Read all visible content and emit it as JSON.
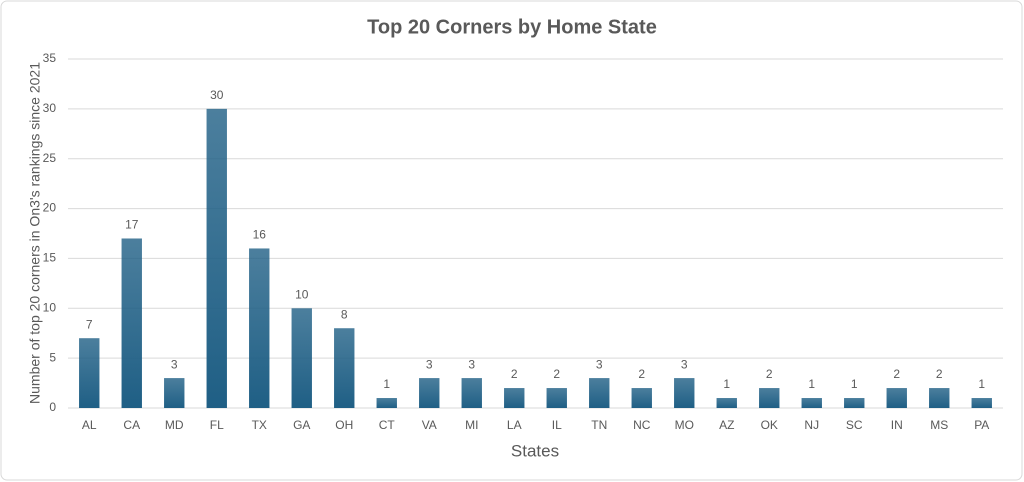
{
  "chart_data": {
    "type": "bar",
    "title": "Top 20 Corners by Home State",
    "x_label": "States",
    "y_label": "Number of top 20 corners in On3's rankings since 2021",
    "categories": [
      "AL",
      "CA",
      "MD",
      "FL",
      "TX",
      "GA",
      "OH",
      "CT",
      "VA",
      "MI",
      "LA",
      "IL",
      "TN",
      "NC",
      "MO",
      "AZ",
      "OK",
      "NJ",
      "SC",
      "IN",
      "MS",
      "PA"
    ],
    "values": [
      7,
      17,
      3,
      30,
      16,
      10,
      8,
      1,
      3,
      3,
      2,
      2,
      3,
      2,
      3,
      1,
      2,
      1,
      1,
      2,
      2,
      1
    ],
    "color": "#1f5f85",
    "ylim": [
      0,
      35
    ],
    "yticks": [
      0,
      5,
      10,
      15,
      20,
      25,
      30,
      35
    ],
    "grid": true
  }
}
